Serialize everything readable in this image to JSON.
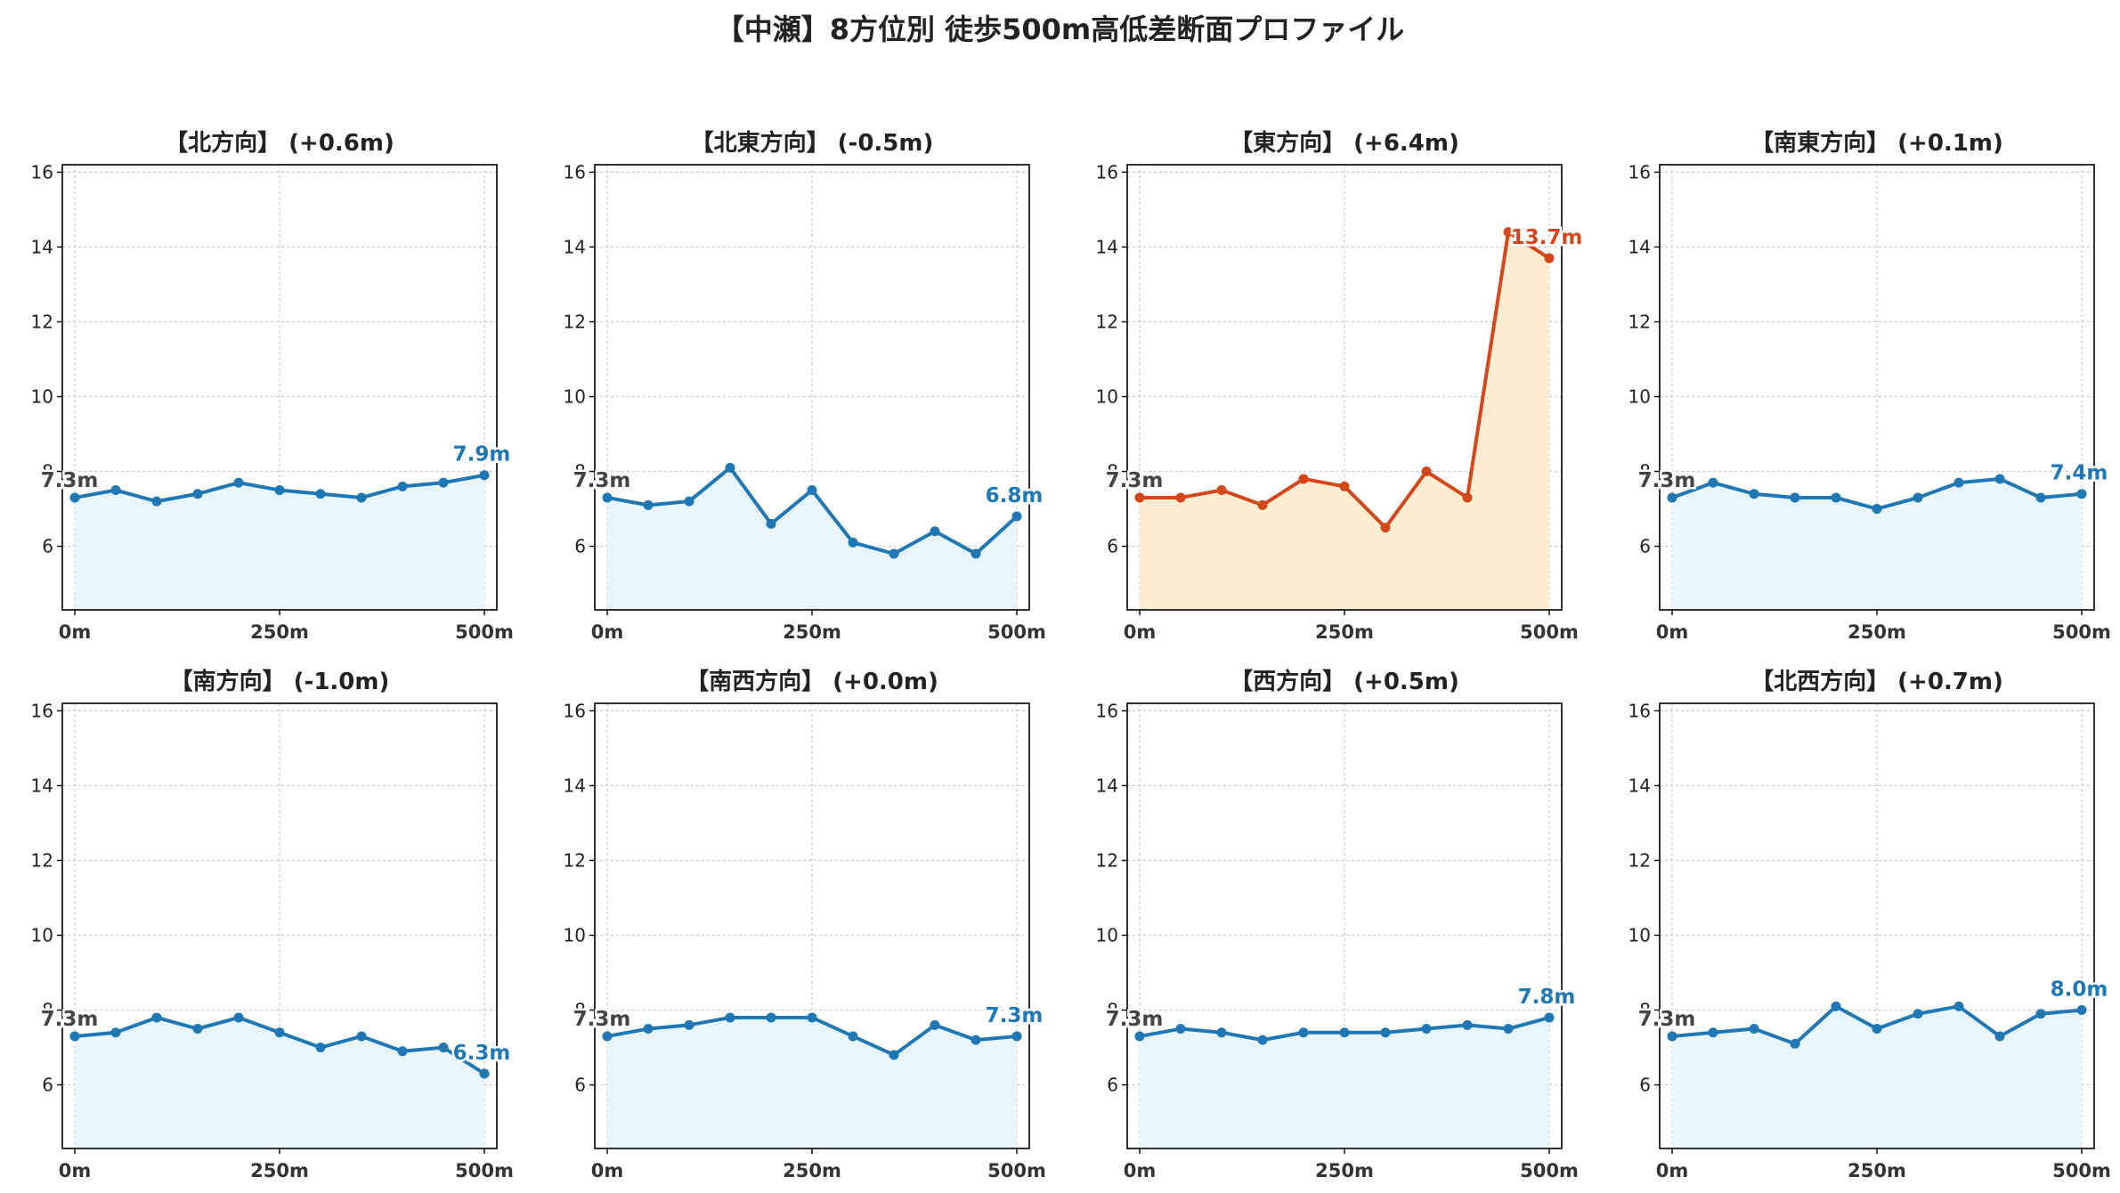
{
  "page_title": "【中瀬】8方位別 徒歩500m高低差断面プロファイル",
  "colors": {
    "normal_line": "#1f77b4",
    "normal_fill": "#e8f6fc",
    "highlight_line": "#d4471b",
    "highlight_fill": "#ffedd2",
    "grid": "#c8c8c8"
  },
  "chart_data": [
    {
      "type": "area",
      "title": "【北方向】 (+0.6m)",
      "x": [
        0,
        50,
        100,
        150,
        200,
        250,
        300,
        350,
        400,
        450,
        500
      ],
      "y": [
        7.3,
        7.5,
        7.2,
        7.4,
        7.7,
        7.5,
        7.4,
        7.3,
        7.6,
        7.7,
        7.9
      ],
      "xticks": [
        "0m",
        "250m",
        "500m"
      ],
      "yticks": [
        "6",
        "8",
        "10",
        "12",
        "14",
        "16"
      ],
      "ylim": [
        4.3,
        16.2
      ],
      "grid": true,
      "start_label": "7.3m",
      "end_label": "7.9m",
      "highlight": false
    },
    {
      "type": "area",
      "title": "【北東方向】 (-0.5m)",
      "x": [
        0,
        50,
        100,
        150,
        200,
        250,
        300,
        350,
        400,
        450,
        500
      ],
      "y": [
        7.3,
        7.1,
        7.2,
        8.1,
        6.6,
        7.5,
        6.1,
        5.8,
        6.4,
        5.8,
        6.8
      ],
      "xticks": [
        "0m",
        "250m",
        "500m"
      ],
      "yticks": [
        "6",
        "8",
        "10",
        "12",
        "14",
        "16"
      ],
      "ylim": [
        4.3,
        16.2
      ],
      "grid": true,
      "start_label": "7.3m",
      "end_label": "6.8m",
      "highlight": false
    },
    {
      "type": "area",
      "title": "【東方向】 (+6.4m)",
      "x": [
        0,
        50,
        100,
        150,
        200,
        250,
        300,
        350,
        400,
        450,
        500
      ],
      "y": [
        7.3,
        7.3,
        7.5,
        7.1,
        7.8,
        7.6,
        6.5,
        8.0,
        7.3,
        14.4,
        13.7
      ],
      "xticks": [
        "0m",
        "250m",
        "500m"
      ],
      "yticks": [
        "6",
        "8",
        "10",
        "12",
        "14",
        "16"
      ],
      "ylim": [
        4.3,
        16.2
      ],
      "grid": true,
      "start_label": "7.3m",
      "end_label": "13.7m",
      "highlight": true
    },
    {
      "type": "area",
      "title": "【南東方向】 (+0.1m)",
      "x": [
        0,
        50,
        100,
        150,
        200,
        250,
        300,
        350,
        400,
        450,
        500
      ],
      "y": [
        7.3,
        7.7,
        7.4,
        7.3,
        7.3,
        7.0,
        7.3,
        7.7,
        7.8,
        7.3,
        7.4
      ],
      "xticks": [
        "0m",
        "250m",
        "500m"
      ],
      "yticks": [
        "6",
        "8",
        "10",
        "12",
        "14",
        "16"
      ],
      "ylim": [
        4.3,
        16.2
      ],
      "grid": true,
      "start_label": "7.3m",
      "end_label": "7.4m",
      "highlight": false
    },
    {
      "type": "area",
      "title": "【南方向】 (-1.0m)",
      "x": [
        0,
        50,
        100,
        150,
        200,
        250,
        300,
        350,
        400,
        450,
        500
      ],
      "y": [
        7.3,
        7.4,
        7.8,
        7.5,
        7.8,
        7.4,
        7.0,
        7.3,
        6.9,
        7.0,
        6.3
      ],
      "xticks": [
        "0m",
        "250m",
        "500m"
      ],
      "yticks": [
        "6",
        "8",
        "10",
        "12",
        "14",
        "16"
      ],
      "ylim": [
        4.3,
        16.2
      ],
      "grid": true,
      "start_label": "7.3m",
      "end_label": "6.3m",
      "highlight": false
    },
    {
      "type": "area",
      "title": "【南西方向】 (+0.0m)",
      "x": [
        0,
        50,
        100,
        150,
        200,
        250,
        300,
        350,
        400,
        450,
        500
      ],
      "y": [
        7.3,
        7.5,
        7.6,
        7.8,
        7.8,
        7.8,
        7.3,
        6.8,
        7.6,
        7.2,
        7.3
      ],
      "xticks": [
        "0m",
        "250m",
        "500m"
      ],
      "yticks": [
        "6",
        "8",
        "10",
        "12",
        "14",
        "16"
      ],
      "ylim": [
        4.3,
        16.2
      ],
      "grid": true,
      "start_label": "7.3m",
      "end_label": "7.3m",
      "highlight": false
    },
    {
      "type": "area",
      "title": "【西方向】 (+0.5m)",
      "x": [
        0,
        50,
        100,
        150,
        200,
        250,
        300,
        350,
        400,
        450,
        500
      ],
      "y": [
        7.3,
        7.5,
        7.4,
        7.2,
        7.4,
        7.4,
        7.4,
        7.5,
        7.6,
        7.5,
        7.8
      ],
      "xticks": [
        "0m",
        "250m",
        "500m"
      ],
      "yticks": [
        "6",
        "8",
        "10",
        "12",
        "14",
        "16"
      ],
      "ylim": [
        4.3,
        16.2
      ],
      "grid": true,
      "start_label": "7.3m",
      "end_label": "7.8m",
      "highlight": false
    },
    {
      "type": "area",
      "title": "【北西方向】 (+0.7m)",
      "x": [
        0,
        50,
        100,
        150,
        200,
        250,
        300,
        350,
        400,
        450,
        500
      ],
      "y": [
        7.3,
        7.4,
        7.5,
        7.1,
        8.1,
        7.5,
        7.9,
        8.1,
        7.3,
        7.9,
        8.0
      ],
      "xticks": [
        "0m",
        "250m",
        "500m"
      ],
      "yticks": [
        "6",
        "8",
        "10",
        "12",
        "14",
        "16"
      ],
      "ylim": [
        4.3,
        16.2
      ],
      "grid": true,
      "start_label": "7.3m",
      "end_label": "8.0m",
      "highlight": false
    }
  ]
}
